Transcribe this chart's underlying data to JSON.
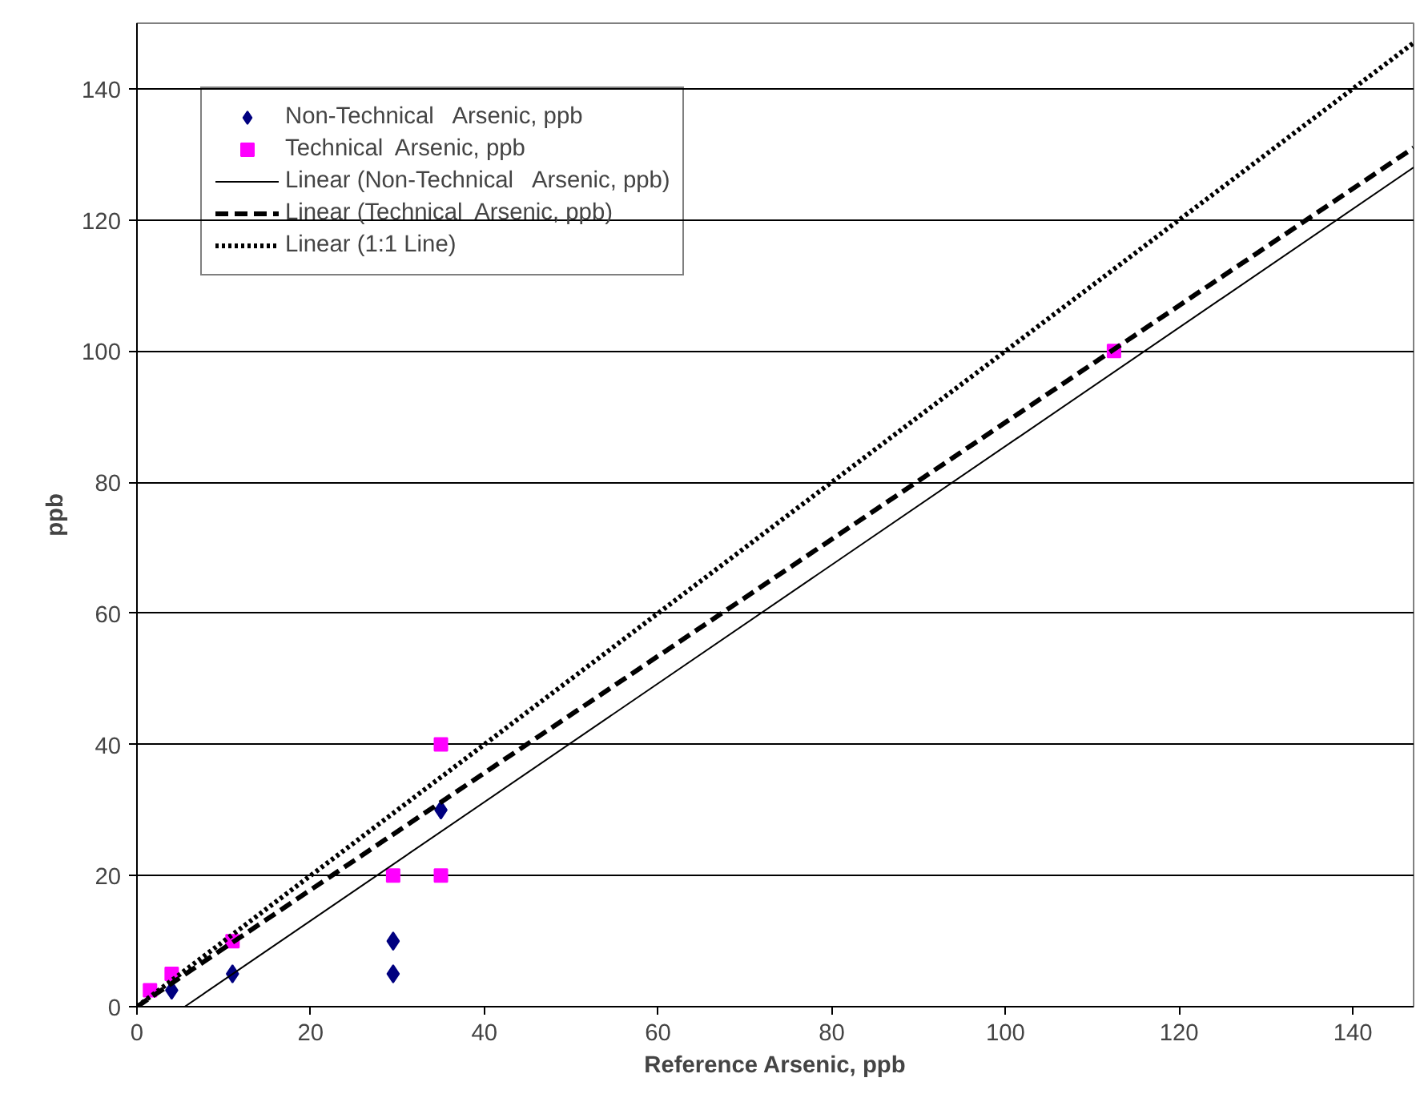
{
  "chart_data": {
    "type": "scatter",
    "xlabel": "Reference Arsenic, ppb",
    "ylabel": "ppb",
    "xlim": [
      0,
      147
    ],
    "ylim": [
      0,
      150
    ],
    "xticks": [
      0,
      20,
      40,
      60,
      80,
      100,
      120,
      140
    ],
    "yticks": [
      0,
      20,
      40,
      60,
      80,
      100,
      120,
      140
    ],
    "grid": "y",
    "legend": "top left",
    "series": [
      {
        "name": "Non-Technical   Arsenic, ppb",
        "marker": "diamond",
        "color": "#000080",
        "x": [
          4,
          11,
          29.5,
          29.5,
          35
        ],
        "values": [
          2.5,
          5,
          10,
          5,
          30
        ]
      },
      {
        "name": "Technical  Arsenic, ppb",
        "marker": "square",
        "color": "#ff00ff",
        "x": [
          1.5,
          4,
          11,
          29.5,
          35,
          35,
          112.5
        ],
        "values": [
          2.5,
          5,
          10,
          20,
          40,
          20,
          100
        ]
      },
      {
        "name": "Linear (Non-Technical   Arsenic, ppb)",
        "type": "line",
        "marker": "none",
        "line_style": "solid",
        "color": "#000000",
        "x": [
          5.5,
          147
        ],
        "values": [
          0,
          128
        ]
      },
      {
        "name": "Linear (Technical  Arsenic, ppb)",
        "type": "line",
        "marker": "none",
        "line_style": "dashed",
        "color": "#000000",
        "x": [
          0,
          147
        ],
        "values": [
          0,
          131
        ]
      },
      {
        "name": "Linear (1:1 Line)",
        "type": "line",
        "marker": "none",
        "line_style": "dotted",
        "color": "#000000",
        "x": [
          0,
          147
        ],
        "values": [
          0,
          147
        ]
      }
    ]
  }
}
